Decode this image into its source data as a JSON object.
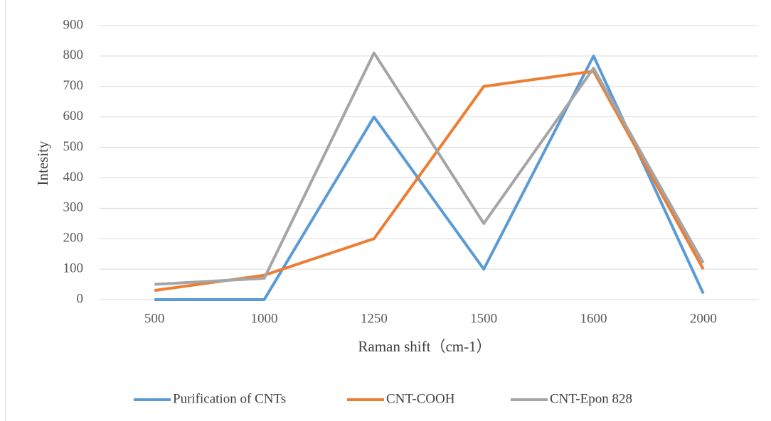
{
  "chart_data": {
    "type": "line",
    "x_label": "Raman shift（cm-1）",
    "y_label": "Intesity",
    "categories": [
      "500",
      "1000",
      "1250",
      "1500",
      "1600",
      "2000"
    ],
    "series": [
      {
        "name": "Purification of CNTs",
        "color": "#5b9bd5",
        "values": [
          0,
          0,
          600,
          100,
          800,
          20
        ]
      },
      {
        "name": "CNT-COOH",
        "color": "#ed7d31",
        "values": [
          30,
          80,
          200,
          700,
          750,
          100
        ]
      },
      {
        "name": "CNT-Epon 828",
        "color": "#a5a5a5",
        "values": [
          50,
          70,
          810,
          250,
          760,
          120
        ]
      }
    ],
    "ylim": [
      0,
      900
    ],
    "yticks": [
      0,
      100,
      200,
      300,
      400,
      500,
      600,
      700,
      800,
      900
    ],
    "grid": true,
    "legend": "bottom"
  }
}
